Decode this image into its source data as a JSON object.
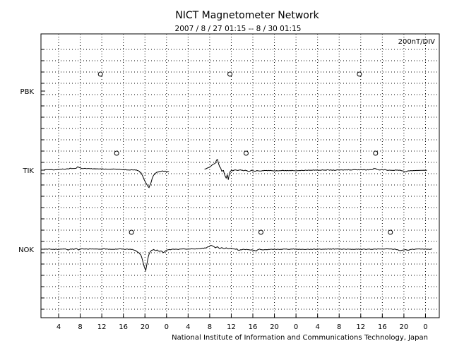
{
  "chart_data": {
    "type": "line",
    "title": "NICT Magnetometer Network",
    "subtitle": "2007 / 8 / 27   01:15 --  8 / 30   01:15",
    "scale_label": "200nT/DIV",
    "credit": "National Institute of Information and Communications Technology, Japan",
    "x_tick_labels": [
      "4",
      "8",
      "12",
      "16",
      "20",
      "0",
      "4",
      "8",
      "12",
      "16",
      "20",
      "0",
      "4",
      "8",
      "12",
      "16",
      "20",
      "0"
    ],
    "x_tick_hours": [
      2.75,
      6.75,
      10.75,
      14.75,
      18.75,
      22.75,
      26.75,
      30.75,
      34.75,
      38.75,
      42.75,
      46.75,
      50.75,
      54.75,
      58.75,
      62.75,
      66.75,
      70.75
    ],
    "xlim": [
      0,
      72
    ],
    "grid": true,
    "stations": [
      {
        "name": "PBK",
        "midnight_hours": [
          10.5,
          34.5,
          58.5
        ],
        "segments": []
      },
      {
        "name": "TIK",
        "midnight_hours": [
          13.5,
          37.5,
          61.5
        ],
        "segments": [
          {
            "t": [
              0,
              1,
              2,
              3,
              3.5,
              4,
              4.5,
              5,
              5.5,
              6,
              6.3,
              6.6,
              7,
              8,
              9,
              10,
              11,
              12,
              13,
              13.5,
              14,
              15,
              16,
              17,
              17.5,
              18,
              18.3,
              18.6,
              18.9,
              19.2,
              19.5,
              19.8,
              20.1,
              20.4,
              20.8,
              21.2,
              21.6,
              22,
              22.6,
              23.2
            ],
            "v": [
              2,
              4,
              3,
              6,
              10,
              8,
              12,
              15,
              14,
              18,
              30,
              22,
              16,
              14,
              12,
              11,
              10,
              9,
              10,
              8,
              6,
              4,
              3,
              2,
              -4,
              -22,
              -48,
              -82,
              -110,
              -135,
              -155,
              -120,
              -72,
              -42,
              -24,
              -16,
              -10,
              -8,
              -10,
              -12
            ]
          },
          {
            "t": [
              29.8,
              30.2,
              30.8,
              31.2,
              31.5,
              31.8,
              32,
              32.2,
              32.4,
              32.6,
              32.8,
              33,
              33.3,
              33.6,
              33.8,
              34,
              34.2,
              34.4,
              34.6,
              34.8,
              35,
              35.3,
              35.6,
              36,
              36.5,
              37,
              37.5,
              38,
              38.5,
              39,
              39.5,
              40,
              41,
              42,
              43,
              44,
              45,
              46,
              47,
              48,
              50,
              52,
              54,
              56,
              58,
              60,
              61,
              61.2,
              62,
              63,
              64,
              65,
              66,
              66.5,
              67,
              68,
              69,
              70,
              71
            ],
            "v": [
              8,
              14,
              28,
              45,
              55,
              62,
              88,
              95,
              55,
              30,
              18,
              -10,
              -5,
              -50,
              -72,
              -40,
              -85,
              -30,
              -10,
              0,
              -5,
              2,
              0,
              -2,
              1,
              -4,
              -2,
              -12,
              -2,
              -10,
              -4,
              -6,
              -3,
              -4,
              -6,
              -2,
              -4,
              -3,
              -5,
              -2,
              0,
              1,
              0,
              2,
              4,
              3,
              6,
              18,
              2,
              3,
              0,
              -1,
              0,
              -6,
              -14,
              -4,
              -3,
              -1,
              0
            ]
          }
        ]
      },
      {
        "name": "NOK",
        "midnight_hours": [
          16.25,
          40.25,
          64.25
        ],
        "segments": [
          {
            "t": [
              0,
              1,
              2,
              3,
              4,
              4.5,
              5,
              5.5,
              6,
              6.5,
              7,
              7.5,
              8,
              9,
              10,
              11,
              12,
              13,
              14,
              15,
              16,
              16.5,
              17,
              17.5,
              18,
              18.3,
              18.6,
              18.9,
              19.2,
              19.4,
              19.7,
              20,
              20.4,
              20.8,
              21,
              21.4,
              21.8,
              22.2,
              22.6,
              23,
              23.3,
              23.6,
              24,
              25,
              26,
              27,
              28,
              29,
              30,
              30.5,
              31,
              31.4,
              31.8,
              32.2,
              32.6,
              33,
              33.4,
              33.8,
              34.2,
              34.6,
              35,
              35.4,
              35.8,
              36,
              37,
              38,
              39,
              39.4,
              39.7,
              40,
              40.5,
              41,
              42,
              43,
              44,
              46,
              48,
              50,
              52,
              54,
              56,
              58,
              60,
              62,
              64,
              65,
              65.5,
              66,
              66.5,
              67,
              67.5,
              68,
              69,
              70,
              71,
              72
            ],
            "v": [
              0,
              2,
              -2,
              1,
              3,
              -8,
              4,
              -2,
              6,
              -4,
              5,
              2,
              3,
              1,
              0,
              2,
              1,
              0,
              2,
              0,
              1,
              -4,
              -12,
              -28,
              -50,
              -96,
              -150,
              -190,
              -110,
              -60,
              -22,
              -8,
              -4,
              -14,
              -6,
              -22,
              -14,
              -32,
              -12,
              -6,
              -4,
              -3,
              0,
              -1,
              2,
              1,
              3,
              5,
              12,
              20,
              36,
              26,
              14,
              22,
              8,
              14,
              4,
              10,
              3,
              6,
              2,
              0,
              3,
              -8,
              -2,
              -3,
              -10,
              -16,
              -4,
              0,
              -6,
              -4,
              -2,
              -1,
              0,
              1,
              -1,
              0,
              1,
              2,
              0,
              -1,
              0,
              1,
              2,
              0,
              -4,
              -12,
              -8,
              -3,
              -10,
              -1,
              0,
              1,
              0,
              1,
              0
            ]
          }
        ]
      }
    ]
  }
}
